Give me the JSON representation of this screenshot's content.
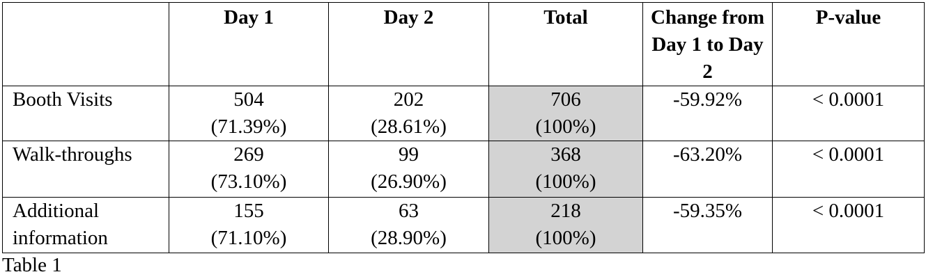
{
  "table": {
    "columns": [
      "Day 1",
      "Day 2",
      "Total",
      "Change from Day 1 to Day 2",
      "P-value"
    ],
    "rows": [
      {
        "label": "Booth Visits",
        "cells": [
          [
            "504",
            "(71.39%)"
          ],
          [
            "202",
            "(28.61%)"
          ],
          [
            "706",
            "(100%)"
          ],
          [
            "-59.92%"
          ],
          [
            "< 0.0001"
          ]
        ]
      },
      {
        "label": "Walk-throughs",
        "cells": [
          [
            "269",
            "(73.10%)"
          ],
          [
            "99",
            "(26.90%)"
          ],
          [
            "368",
            "(100%)"
          ],
          [
            "-63.20%"
          ],
          [
            "< 0.0001"
          ]
        ]
      },
      {
        "label": "Additional information",
        "cells": [
          [
            "155",
            "(71.10%)"
          ],
          [
            "63",
            "(28.90%)"
          ],
          [
            "218",
            "(100%)"
          ],
          [
            "-59.35%"
          ],
          [
            "< 0.0001"
          ]
        ]
      }
    ]
  },
  "caption": "Table 1"
}
